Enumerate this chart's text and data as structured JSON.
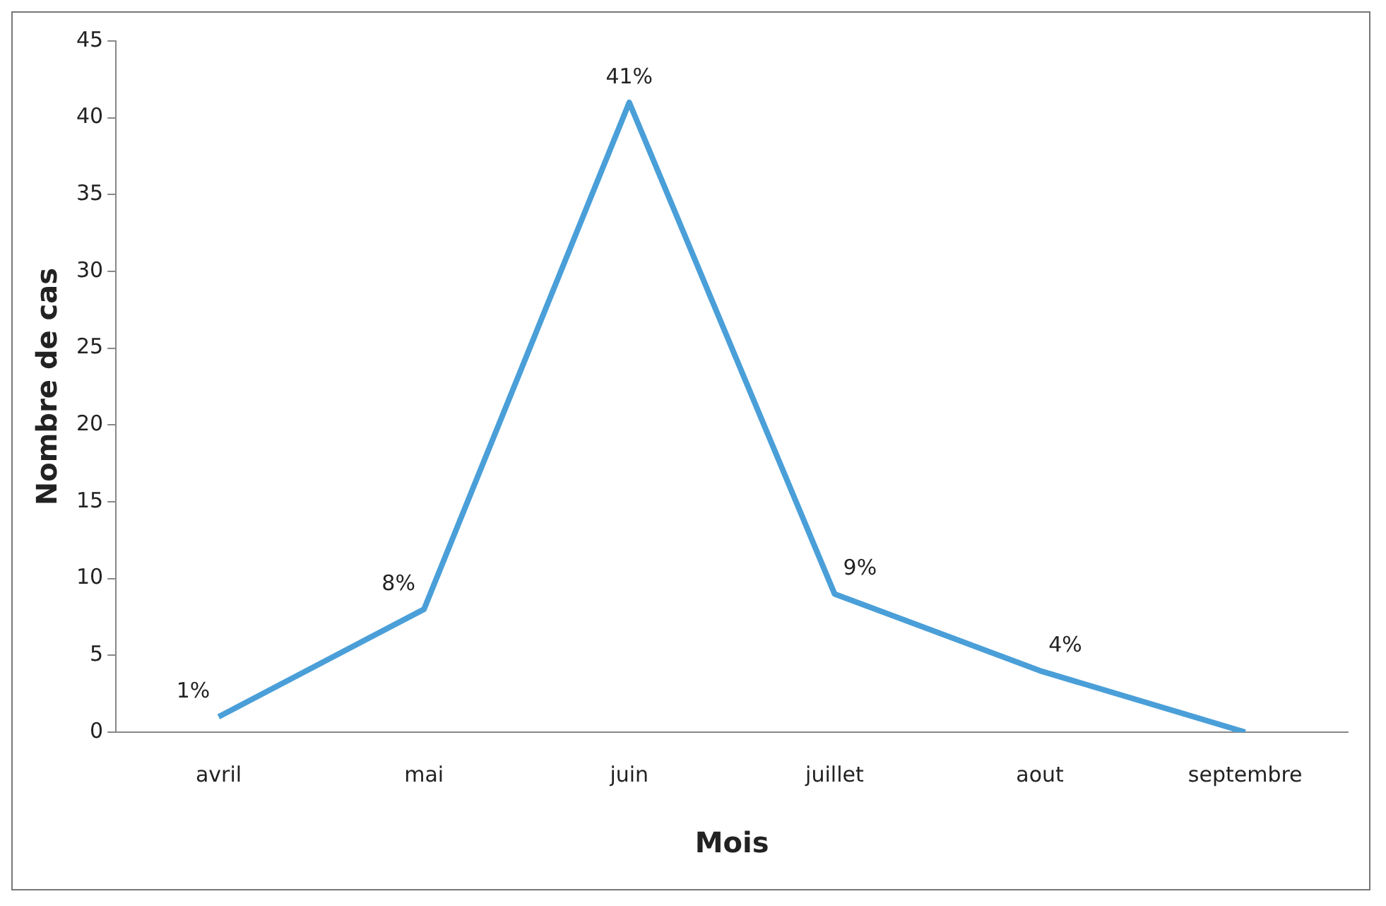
{
  "chart_data": {
    "type": "line",
    "xlabel": "Mois",
    "ylabel": "Nombre de cas",
    "categories": [
      "avril",
      "mai",
      "juin",
      "juillet",
      "aout",
      "septembre"
    ],
    "series": [
      {
        "color": "#4a9fd8",
        "values": [
          1,
          8,
          41,
          9,
          4,
          0
        ],
        "value_labels": [
          "1%",
          "8%",
          "41%",
          "9%",
          "4%",
          null
        ]
      }
    ],
    "ylim": [
      0,
      45
    ],
    "yticks": [
      0,
      5,
      10,
      15,
      20,
      25,
      30,
      35,
      40,
      45
    ],
    "grid": false,
    "legend": false,
    "marker": "none",
    "line_style": "solid"
  }
}
